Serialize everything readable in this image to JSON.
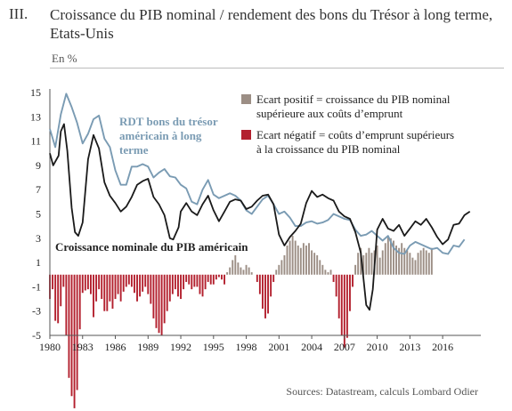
{
  "header": {
    "number": "III.",
    "title": "Croissance du PIB nominal / rendement des bons du Trésor à long terme, Etats-Unis",
    "unit": "En %"
  },
  "source": "Sources: Datastream, calculs Lombard Odier",
  "chart_data": {
    "type": "line",
    "ylim": [
      -5,
      15
    ],
    "xlim": [
      1980,
      2019.5
    ],
    "y_ticks": [
      15,
      13,
      11,
      9,
      7,
      5,
      3,
      1,
      -1,
      -3,
      -5
    ],
    "x_ticks": [
      1980,
      1983,
      1986,
      1989,
      1992,
      1995,
      1998,
      2001,
      2004,
      2007,
      2010,
      2013,
      2016
    ],
    "grid": false,
    "colors": {
      "treasury": "#7a9bb3",
      "gdp": "#1a1a1a",
      "positive": "#9c8e85",
      "negative": "#b3202e"
    },
    "annotations": {
      "treasury_label": [
        "RDT bons du trésor",
        "américain à long",
        "terme"
      ],
      "gdp_label": "Croissance nominale du PIB américain"
    },
    "legend": [
      {
        "key": "positive",
        "lines": [
          "Ecart positif = croissance du PIB nominal",
          "supérieure aux coûts d’emprunt"
        ]
      },
      {
        "key": "negative",
        "lines": [
          "Ecart négatif = coûts d’emprunt supérieurs",
          "à la croissance du PIB nominal"
        ]
      }
    ],
    "series": [
      {
        "key": "treasury",
        "points": [
          [
            1980,
            12.0
          ],
          [
            1980.5,
            10.5
          ],
          [
            1981,
            13.2
          ],
          [
            1981.5,
            14.9
          ],
          [
            1982,
            13.8
          ],
          [
            1982.5,
            12.5
          ],
          [
            1983,
            10.8
          ],
          [
            1983.5,
            11.6
          ],
          [
            1984,
            12.8
          ],
          [
            1984.5,
            13.1
          ],
          [
            1985,
            11.2
          ],
          [
            1985.5,
            10.5
          ],
          [
            1986,
            8.6
          ],
          [
            1986.5,
            7.4
          ],
          [
            1987,
            7.4
          ],
          [
            1987.5,
            8.9
          ],
          [
            1988,
            8.9
          ],
          [
            1988.5,
            9.1
          ],
          [
            1989,
            8.9
          ],
          [
            1989.5,
            8.0
          ],
          [
            1990,
            8.4
          ],
          [
            1990.5,
            8.7
          ],
          [
            1991,
            8.1
          ],
          [
            1991.5,
            8.0
          ],
          [
            1992,
            7.4
          ],
          [
            1992.5,
            7.1
          ],
          [
            1993,
            6.0
          ],
          [
            1993.5,
            5.8
          ],
          [
            1994,
            7.0
          ],
          [
            1994.5,
            7.8
          ],
          [
            1995,
            6.6
          ],
          [
            1995.5,
            6.3
          ],
          [
            1996,
            6.5
          ],
          [
            1996.5,
            6.7
          ],
          [
            1997,
            6.5
          ],
          [
            1997.5,
            6.1
          ],
          [
            1998,
            5.3
          ],
          [
            1998.5,
            5.0
          ],
          [
            1999,
            5.6
          ],
          [
            1999.5,
            6.2
          ],
          [
            2000,
            6.5
          ],
          [
            2000.5,
            5.8
          ],
          [
            2001,
            5.0
          ],
          [
            2001.5,
            5.2
          ],
          [
            2002,
            4.7
          ],
          [
            2002.5,
            4.0
          ],
          [
            2003,
            4.0
          ],
          [
            2003.5,
            4.3
          ],
          [
            2004,
            4.4
          ],
          [
            2004.5,
            4.2
          ],
          [
            2005,
            4.3
          ],
          [
            2005.5,
            4.5
          ],
          [
            2006,
            5.0
          ],
          [
            2006.5,
            4.8
          ],
          [
            2007,
            4.6
          ],
          [
            2007.5,
            4.5
          ],
          [
            2008,
            3.7
          ],
          [
            2008.5,
            3.2
          ],
          [
            2009,
            3.3
          ],
          [
            2009.5,
            3.6
          ],
          [
            2010,
            3.2
          ],
          [
            2010.5,
            2.8
          ],
          [
            2011,
            3.2
          ],
          [
            2011.5,
            2.2
          ],
          [
            2012,
            1.8
          ],
          [
            2012.5,
            1.7
          ],
          [
            2013,
            2.4
          ],
          [
            2013.5,
            2.7
          ],
          [
            2014,
            2.5
          ],
          [
            2014.5,
            2.3
          ],
          [
            2015,
            2.1
          ],
          [
            2015.5,
            2.2
          ],
          [
            2016,
            1.8
          ],
          [
            2016.5,
            1.7
          ],
          [
            2017,
            2.4
          ],
          [
            2017.5,
            2.3
          ],
          [
            2018,
            2.9
          ]
        ]
      },
      {
        "key": "gdp",
        "points": [
          [
            1980,
            10.0
          ],
          [
            1980.3,
            9.0
          ],
          [
            1980.8,
            9.8
          ],
          [
            1981,
            11.8
          ],
          [
            1981.3,
            12.4
          ],
          [
            1981.6,
            10.2
          ],
          [
            1982,
            5.5
          ],
          [
            1982.3,
            3.5
          ],
          [
            1982.6,
            3.2
          ],
          [
            1983,
            4.3
          ],
          [
            1983.5,
            9.5
          ],
          [
            1984,
            11.5
          ],
          [
            1984.5,
            10.4
          ],
          [
            1985,
            7.6
          ],
          [
            1985.5,
            6.5
          ],
          [
            1986,
            5.9
          ],
          [
            1986.5,
            5.2
          ],
          [
            1987,
            5.6
          ],
          [
            1987.5,
            6.4
          ],
          [
            1988,
            7.4
          ],
          [
            1988.5,
            7.7
          ],
          [
            1989,
            7.9
          ],
          [
            1989.5,
            6.4
          ],
          [
            1990,
            5.8
          ],
          [
            1990.5,
            4.9
          ],
          [
            1991,
            3.0
          ],
          [
            1991.3,
            2.9
          ],
          [
            1991.8,
            3.9
          ],
          [
            1992,
            5.2
          ],
          [
            1992.5,
            5.9
          ],
          [
            1993,
            5.2
          ],
          [
            1993.5,
            4.9
          ],
          [
            1994,
            5.8
          ],
          [
            1994.5,
            6.5
          ],
          [
            1995,
            5.3
          ],
          [
            1995.5,
            4.4
          ],
          [
            1996,
            5.2
          ],
          [
            1996.5,
            6.0
          ],
          [
            1997,
            6.2
          ],
          [
            1997.5,
            6.1
          ],
          [
            1998,
            5.4
          ],
          [
            1998.5,
            5.6
          ],
          [
            1999,
            6.1
          ],
          [
            1999.5,
            6.5
          ],
          [
            2000,
            6.6
          ],
          [
            2000.5,
            5.8
          ],
          [
            2001,
            3.3
          ],
          [
            2001.5,
            2.4
          ],
          [
            2002,
            3.1
          ],
          [
            2002.5,
            3.6
          ],
          [
            2003,
            4.2
          ],
          [
            2003.5,
            5.9
          ],
          [
            2004,
            6.9
          ],
          [
            2004.5,
            6.4
          ],
          [
            2005,
            6.6
          ],
          [
            2005.5,
            6.3
          ],
          [
            2006,
            6.1
          ],
          [
            2006.5,
            5.2
          ],
          [
            2007,
            4.8
          ],
          [
            2007.5,
            4.6
          ],
          [
            2008,
            3.5
          ],
          [
            2008.5,
            1.8
          ],
          [
            2009,
            -2.5
          ],
          [
            2009.3,
            -2.9
          ],
          [
            2009.6,
            -1.2
          ],
          [
            2010,
            3.7
          ],
          [
            2010.5,
            4.6
          ],
          [
            2011,
            3.8
          ],
          [
            2011.5,
            3.6
          ],
          [
            2012,
            4.1
          ],
          [
            2012.5,
            3.2
          ],
          [
            2013,
            3.8
          ],
          [
            2013.5,
            4.4
          ],
          [
            2014,
            4.1
          ],
          [
            2014.5,
            4.6
          ],
          [
            2015,
            3.9
          ],
          [
            2015.5,
            3.1
          ],
          [
            2016,
            2.5
          ],
          [
            2016.5,
            2.9
          ],
          [
            2017,
            4.1
          ],
          [
            2017.5,
            4.2
          ],
          [
            2018,
            4.9
          ],
          [
            2018.5,
            5.2
          ]
        ]
      }
    ],
    "spread_bars": {
      "x_start": 1980,
      "step": 0.25,
      "values": [
        -2.0,
        -1.2,
        -3.8,
        -4.0,
        -2.6,
        -1.0,
        -5.0,
        -8.5,
        -10.0,
        -11.0,
        -9.5,
        -4.5,
        -1.5,
        -1.3,
        -1.2,
        -1.6,
        -3.5,
        -2.2,
        -1.2,
        -2.0,
        -3.0,
        -3.0,
        -2.2,
        -2.8,
        -2.0,
        -1.6,
        -2.2,
        -1.4,
        -1.0,
        -0.8,
        -1.0,
        -1.5,
        -2.2,
        -1.8,
        -1.4,
        -1.0,
        -1.6,
        -2.4,
        -3.6,
        -4.4,
        -4.8,
        -5.0,
        -4.0,
        -3.0,
        -2.2,
        -1.6,
        -1.2,
        -1.8,
        -2.0,
        -1.2,
        -0.6,
        -0.8,
        -1.2,
        -1.0,
        -1.0,
        -1.6,
        -1.8,
        -1.2,
        -0.6,
        -0.8,
        -0.8,
        -0.4,
        -0.2,
        -0.4,
        -0.8,
        0.2,
        0.6,
        1.2,
        1.6,
        1.0,
        0.6,
        0.4,
        0.8,
        0.6,
        0.2,
        0,
        -0.6,
        -1.6,
        -2.8,
        -3.6,
        -3.2,
        -1.8,
        -0.6,
        0.4,
        0.8,
        1.2,
        1.6,
        2.4,
        2.8,
        3.2,
        2.8,
        2.4,
        2.2,
        2.6,
        2.4,
        2.6,
        2.0,
        1.8,
        1.6,
        1.2,
        0.8,
        0.4,
        0.2,
        0.4,
        -0.6,
        -1.8,
        -3.6,
        -5.0,
        -6.0,
        -5.2,
        -3.0,
        -1.0,
        0.8,
        1.8,
        2.2,
        1.6,
        1.8,
        2.2,
        1.8,
        2.0,
        2.4,
        1.4,
        2.0,
        2.6,
        3.2,
        3.0,
        2.8,
        2.4,
        2.2,
        2.6,
        2.2,
        2.0,
        1.8,
        1.4,
        1.2,
        1.8,
        2.0,
        2.2,
        2.0,
        1.8,
        2.2
      ]
    }
  }
}
